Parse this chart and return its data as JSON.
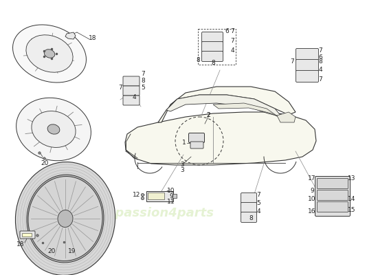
{
  "bg_color": "#ffffff",
  "line_color": "#333333",
  "gray_line": "#888888",
  "light_fill": "#f5f5f5",
  "med_fill": "#e0e0e0",
  "dark_fill": "#aaaaaa",
  "wheel_gray": "#c0c0c0",
  "car_fill": "#f8f8ee",
  "wm_color": "#d0e8b0",
  "label_fs": 6.5
}
